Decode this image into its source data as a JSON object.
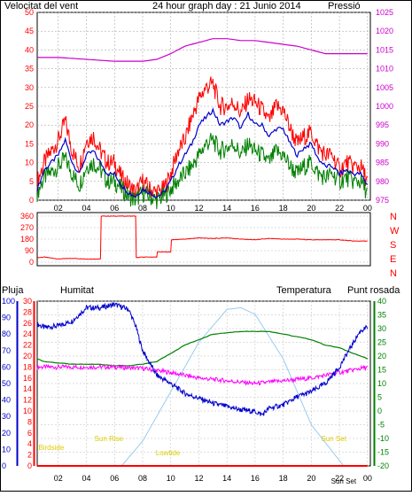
{
  "colors": {
    "frame": "#000000",
    "wind": "#ff0000",
    "gust_avg": "#0000cc",
    "gust_low": "#008000",
    "pressure": "#cc00cc",
    "rain": "#ff0000",
    "humidity": "#0000cc",
    "temperature": "#008000",
    "dewpoint": "#ff00ff",
    "solar": "#99ccee",
    "sun_label": "#ddcc00"
  },
  "chart_data": [
    {
      "type": "line",
      "title": "24 hour graph day : 21 Junio 2014",
      "left_label": "Velocitat del vent",
      "right_label": "Pressió",
      "x_tick_labels": [
        "02",
        "04",
        "06",
        "08",
        "10",
        "12",
        "14",
        "16",
        "18",
        "20",
        "22",
        "00"
      ],
      "x_hours": [
        2,
        4,
        6,
        8,
        10,
        12,
        14,
        16,
        18,
        20,
        22,
        24
      ],
      "xlim": [
        0.5,
        24.2
      ],
      "y_left_ticks": [
        0,
        5,
        10,
        15,
        20,
        25,
        30,
        35,
        40,
        45,
        50
      ],
      "y_right_ticks": [
        975,
        980,
        985,
        990,
        995,
        1000,
        1005,
        1010,
        1015,
        1020,
        1025
      ],
      "ylim_left": [
        0,
        50
      ],
      "ylim_right": [
        975,
        1025
      ],
      "grid": true,
      "series": [
        {
          "key": "wind_max",
          "x": [
            0.5,
            1,
            2,
            2.5,
            3,
            3.5,
            4,
            4.5,
            5,
            5.5,
            6,
            6.5,
            7,
            7.5,
            8,
            8.5,
            9,
            9.5,
            10,
            10.5,
            11,
            11.5,
            12,
            12.5,
            13,
            13.5,
            14,
            14.5,
            15,
            15.5,
            16,
            16.5,
            17,
            17.5,
            18,
            18.5,
            19,
            19.5,
            20,
            20.5,
            21,
            21.5,
            22,
            22.5,
            23,
            23.5,
            24
          ],
          "y": [
            5,
            10,
            16,
            21,
            13,
            9,
            16,
            17,
            13,
            10,
            10,
            6,
            4,
            2,
            5,
            3,
            2,
            3,
            7,
            13,
            16,
            22,
            27,
            30,
            31,
            25,
            25,
            26,
            23,
            27,
            26,
            24,
            21,
            25,
            24,
            19,
            15,
            17,
            18,
            14,
            12,
            12,
            8,
            10,
            9,
            9,
            5
          ]
        },
        {
          "key": "wind_avg",
          "x": [
            0.5,
            1,
            2,
            2.5,
            3,
            3.5,
            4,
            4.5,
            5,
            5.5,
            6,
            6.5,
            7,
            7.5,
            8,
            8.5,
            9,
            9.5,
            10,
            10.5,
            11,
            11.5,
            12,
            12.5,
            13,
            13.5,
            14,
            14.5,
            15,
            15.5,
            16,
            16.5,
            17,
            17.5,
            18,
            18.5,
            19,
            19.5,
            20,
            20.5,
            21,
            21.5,
            22,
            22.5,
            23,
            23.5,
            24
          ],
          "y": [
            3,
            8,
            12,
            16,
            10,
            7,
            12,
            13,
            10,
            7,
            7,
            4,
            2,
            1,
            3,
            2,
            1,
            2,
            5,
            9,
            12,
            15,
            20,
            22,
            24,
            20,
            21,
            22,
            19,
            23,
            20,
            20,
            17,
            19,
            19,
            15,
            12,
            14,
            15,
            11,
            9,
            9,
            7,
            8,
            7,
            7,
            4
          ]
        },
        {
          "key": "wind_low",
          "x": [
            0.5,
            1,
            2,
            2.5,
            3,
            3.5,
            4,
            4.5,
            5,
            5.5,
            6,
            6.5,
            7,
            7.5,
            8,
            8.5,
            9,
            9.5,
            10,
            10.5,
            11,
            11.5,
            12,
            12.5,
            13,
            13.5,
            14,
            14.5,
            15,
            15.5,
            16,
            16.5,
            17,
            17.5,
            18,
            18.5,
            19,
            19.5,
            20,
            20.5,
            21,
            21.5,
            22,
            22.5,
            23,
            23.5,
            24
          ],
          "y": [
            2,
            6,
            9,
            11,
            7,
            4,
            9,
            10,
            8,
            5,
            5,
            3,
            1,
            0,
            2,
            1,
            0,
            1,
            3,
            5,
            7,
            9,
            12,
            15,
            16,
            13,
            14,
            15,
            12,
            15,
            13,
            12,
            10,
            13,
            12,
            9,
            7,
            9,
            10,
            7,
            6,
            7,
            5,
            6,
            5,
            5,
            2
          ]
        },
        {
          "key": "pressure",
          "x": [
            0.5,
            2,
            4,
            6,
            7,
            8,
            9,
            10,
            11,
            12,
            13,
            14,
            15,
            16,
            17,
            18,
            19,
            20,
            21,
            22,
            23,
            24
          ],
          "y": [
            1013,
            1013,
            1012.5,
            1012,
            1012,
            1012,
            1012.5,
            1014,
            1016,
            1017,
            1018,
            1018,
            1017.5,
            1017.5,
            1017,
            1016.5,
            1016,
            1015,
            1014,
            1014,
            1014,
            1014
          ]
        }
      ]
    },
    {
      "type": "line",
      "y_tick_labels": [
        "360",
        "270",
        "180",
        "90",
        "0"
      ],
      "y_ticks": [
        360,
        270,
        180,
        90,
        0
      ],
      "ylim": [
        0,
        360
      ],
      "right_labels": [
        "N",
        "W",
        "S",
        "E",
        "N"
      ],
      "series": [
        {
          "key": "wind_direction",
          "x": [
            0.5,
            1,
            2,
            3,
            4,
            5,
            5.05,
            6,
            7,
            7.5,
            7.55,
            8,
            9,
            9.05,
            10,
            10.05,
            11,
            12,
            13,
            14,
            15,
            16,
            17,
            18,
            19,
            20,
            21,
            22,
            23,
            24
          ],
          "y": [
            35,
            40,
            25,
            30,
            25,
            25,
            360,
            360,
            360,
            360,
            35,
            40,
            40,
            80,
            80,
            175,
            180,
            190,
            185,
            190,
            180,
            175,
            185,
            180,
            180,
            175,
            175,
            175,
            165,
            165
          ]
        }
      ]
    },
    {
      "type": "line",
      "left_labels": [
        "Pluja",
        "Humitat"
      ],
      "right_labels": [
        "Temperatura",
        "Punt rosada"
      ],
      "y_rain_ticks": [
        0,
        2,
        4,
        6,
        8,
        10,
        12,
        14,
        16,
        18,
        20,
        22,
        24,
        26,
        28,
        30
      ],
      "y_hum_ticks": [
        0,
        10,
        20,
        30,
        40,
        50,
        60,
        70,
        80,
        90,
        100
      ],
      "y_temp_ticks": [
        -20,
        -15,
        -10,
        -5,
        0,
        5,
        10,
        15,
        20,
        25,
        30,
        35,
        40
      ],
      "ylim_humidity": [
        0,
        100
      ],
      "ylim_temperature": [
        -20,
        40
      ],
      "annotations": [
        {
          "text": "Sun Rise",
          "hour": 5.6
        },
        {
          "text": "Sun Set",
          "hour": 21.6
        },
        {
          "text": "Sun Set",
          "hour": 22.3
        },
        {
          "text": "Birdside",
          "hour": 1.5
        },
        {
          "text": "Lowtide",
          "hour": 9.8
        }
      ],
      "series": [
        {
          "key": "humidity",
          "x": [
            0.5,
            1,
            2,
            3,
            3.5,
            4,
            5,
            6,
            7,
            7.5,
            8,
            9,
            10,
            11,
            12,
            13,
            14,
            15,
            16,
            16.5,
            17,
            18,
            19,
            20,
            21,
            22,
            23,
            23.5,
            24
          ],
          "y": [
            86,
            84,
            85,
            88,
            92,
            96,
            96,
            98,
            95,
            85,
            70,
            55,
            50,
            44,
            41,
            38,
            36,
            34,
            33,
            31,
            35,
            37,
            42,
            45,
            50,
            60,
            75,
            82,
            84
          ]
        },
        {
          "key": "temperature",
          "x": [
            0.5,
            1,
            2,
            3,
            4,
            5,
            6,
            7,
            8,
            9,
            10,
            11,
            12,
            13,
            14,
            15,
            16,
            17,
            18,
            19,
            20,
            21,
            22,
            23,
            24
          ],
          "y": [
            19,
            18,
            17.5,
            17,
            17,
            17,
            16.5,
            16.5,
            17,
            18,
            21,
            24,
            26,
            28,
            28.5,
            29,
            29,
            29,
            28,
            27,
            26,
            24,
            23,
            21,
            19
          ]
        },
        {
          "key": "dewpoint",
          "x": [
            0.5,
            2,
            4,
            6,
            8,
            10,
            12,
            14,
            16,
            18,
            20,
            22,
            24
          ],
          "y": [
            16,
            16,
            16,
            16,
            15.5,
            14,
            12,
            11,
            10,
            11,
            12,
            14,
            16
          ]
        },
        {
          "key": "solar",
          "x": [
            6.5,
            8,
            10,
            12,
            14,
            15,
            16,
            18,
            20,
            22.3
          ],
          "y": [
            0,
            15,
            45,
            75,
            95,
            96,
            92,
            65,
            25,
            0
          ]
        },
        {
          "key": "rain",
          "x": [
            0.5,
            24
          ],
          "y": [
            0,
            0
          ]
        }
      ]
    }
  ]
}
